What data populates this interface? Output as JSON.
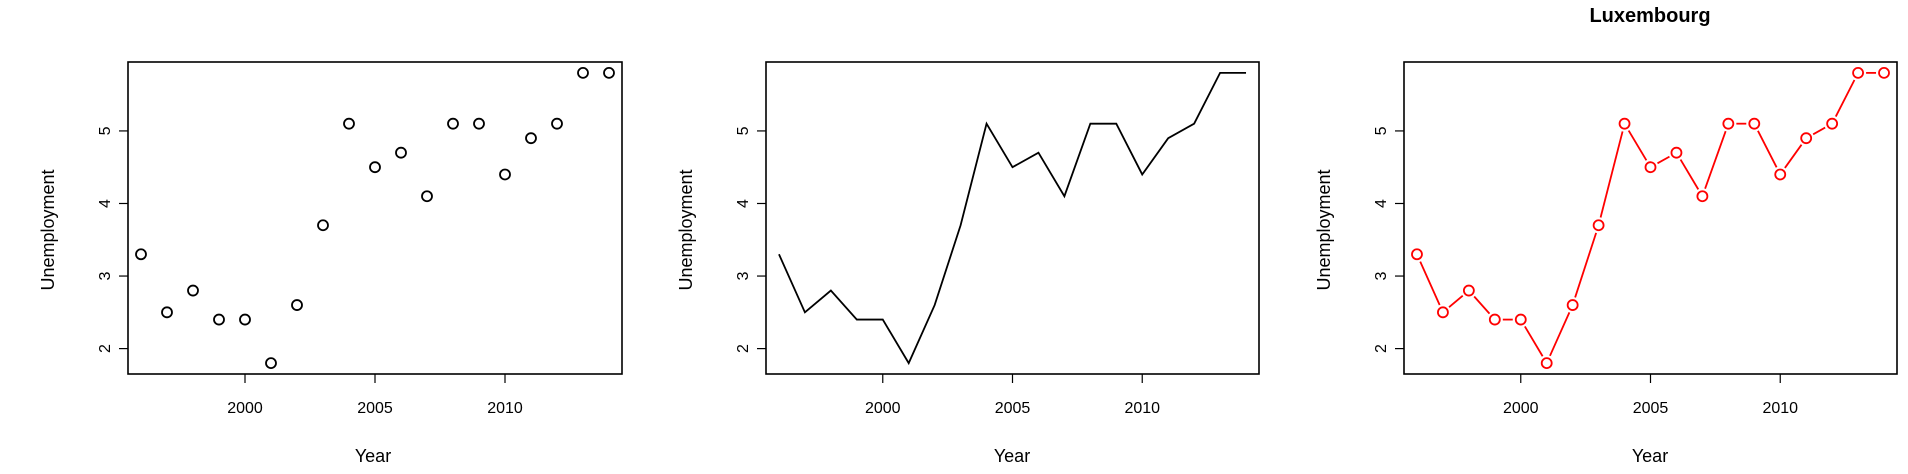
{
  "chart_data": [
    {
      "type": "scatter",
      "title": "",
      "xlabel": "Year",
      "ylabel": "Unemployment",
      "x": [
        1996,
        1997,
        1998,
        1999,
        2000,
        2001,
        2002,
        2003,
        2004,
        2005,
        2006,
        2007,
        2008,
        2009,
        2010,
        2011,
        2012,
        2013,
        2014
      ],
      "y": [
        3.3,
        2.5,
        2.8,
        2.4,
        2.4,
        1.8,
        2.6,
        3.7,
        5.1,
        4.5,
        4.7,
        4.1,
        5.1,
        5.1,
        4.4,
        4.9,
        5.1,
        5.8,
        5.8
      ],
      "xticks": [
        2000,
        2005,
        2010
      ],
      "yticks": [
        2,
        3,
        4,
        5
      ],
      "xlim": [
        1995.5,
        2014.5
      ],
      "ylim": [
        1.65,
        5.95
      ],
      "grid": false,
      "color": "#000000"
    },
    {
      "type": "line",
      "title": "",
      "xlabel": "Year",
      "ylabel": "Unemployment",
      "x": [
        1996,
        1997,
        1998,
        1999,
        2000,
        2001,
        2002,
        2003,
        2004,
        2005,
        2006,
        2007,
        2008,
        2009,
        2010,
        2011,
        2012,
        2013,
        2014
      ],
      "y": [
        3.3,
        2.5,
        2.8,
        2.4,
        2.4,
        1.8,
        2.6,
        3.7,
        5.1,
        4.5,
        4.7,
        4.1,
        5.1,
        5.1,
        4.4,
        4.9,
        5.1,
        5.8,
        5.8
      ],
      "xticks": [
        2000,
        2005,
        2010
      ],
      "yticks": [
        2,
        3,
        4,
        5
      ],
      "xlim": [
        1995.5,
        2014.5
      ],
      "ylim": [
        1.65,
        5.95
      ],
      "grid": false,
      "color": "#000000"
    },
    {
      "type": "line",
      "style": "both",
      "title": "Luxembourg",
      "xlabel": "Year",
      "ylabel": "Unemployment",
      "x": [
        1996,
        1997,
        1998,
        1999,
        2000,
        2001,
        2002,
        2003,
        2004,
        2005,
        2006,
        2007,
        2008,
        2009,
        2010,
        2011,
        2012,
        2013,
        2014
      ],
      "y": [
        3.3,
        2.5,
        2.8,
        2.4,
        2.4,
        1.8,
        2.6,
        3.7,
        5.1,
        4.5,
        4.7,
        4.1,
        5.1,
        5.1,
        4.4,
        4.9,
        5.1,
        5.8,
        5.8
      ],
      "xticks": [
        2000,
        2005,
        2010
      ],
      "yticks": [
        2,
        3,
        4,
        5
      ],
      "xlim": [
        1995.5,
        2014.5
      ],
      "ylim": [
        1.65,
        5.95
      ],
      "grid": false,
      "color": "#ff0000"
    }
  ]
}
